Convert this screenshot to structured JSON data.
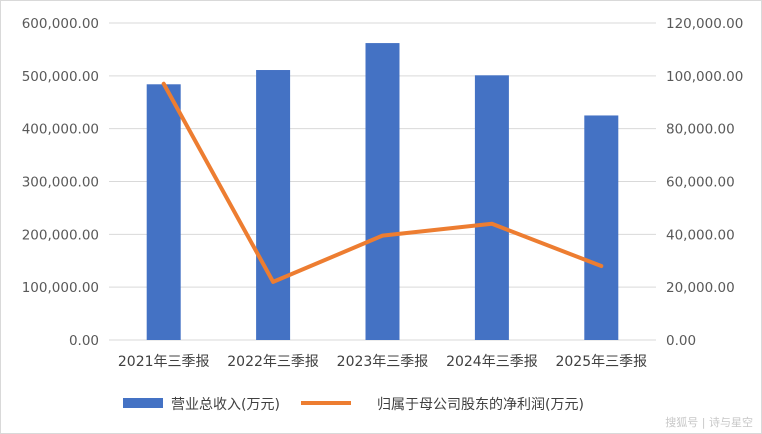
{
  "chart_data": {
    "type": "bar",
    "categories": [
      "2021年三季报",
      "2022年三季报",
      "2023年三季报",
      "2024年三季报",
      "2025年三季报"
    ],
    "series": [
      {
        "name": "营业总收入(万元)",
        "type": "bar",
        "axis": "left",
        "color": "#4472C4",
        "values": [
          484000,
          511000,
          562000,
          501000,
          425000
        ]
      },
      {
        "name": "归属于母公司股东的净利润(万元)",
        "type": "line",
        "axis": "right",
        "color": "#ED7D31",
        "values": [
          97000,
          22000,
          39500,
          44000,
          28000
        ]
      }
    ],
    "y_left": {
      "range": [
        0,
        600000
      ],
      "ticks": [
        "0.00",
        "100,000.00",
        "200,000.00",
        "300,000.00",
        "400,000.00",
        "500,000.00",
        "600,000.00"
      ]
    },
    "y_right": {
      "range": [
        0,
        120000
      ],
      "ticks": [
        "0.00",
        "20,000.00",
        "40,000.00",
        "60,000.00",
        "80,000.00",
        "100,000.00",
        "120,000.00"
      ]
    },
    "grid": true,
    "legend_position": "bottom"
  },
  "watermark": "搜狐号 | 诗与星空"
}
